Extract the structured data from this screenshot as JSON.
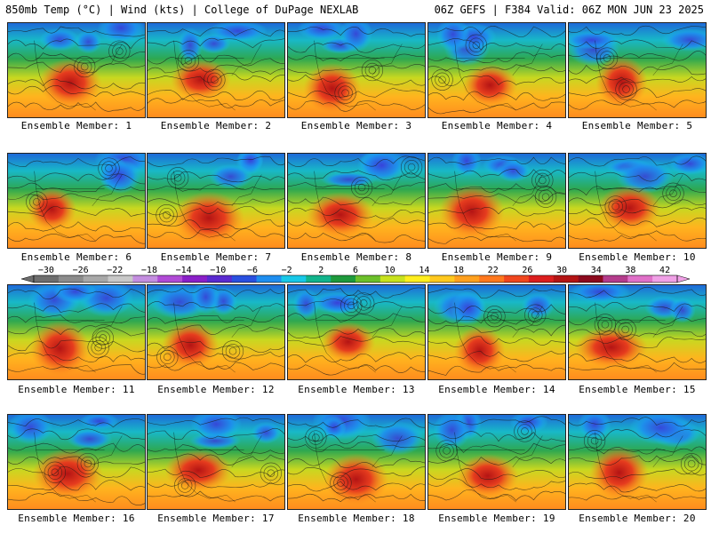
{
  "header": {
    "left": "850mb Temp (°C) | Wind (kts) | College of DuPage NEXLAB",
    "right": "06Z GEFS | F384 Valid: 06Z MON JUN 23 2025"
  },
  "panels": [
    {
      "label": "Ensemble Member: 1"
    },
    {
      "label": "Ensemble Member: 2"
    },
    {
      "label": "Ensemble Member: 3"
    },
    {
      "label": "Ensemble Member: 4"
    },
    {
      "label": "Ensemble Member: 5"
    },
    {
      "label": "Ensemble Member: 6"
    },
    {
      "label": "Ensemble Member: 7"
    },
    {
      "label": "Ensemble Member: 8"
    },
    {
      "label": "Ensemble Member: 9"
    },
    {
      "label": "Ensemble Member: 10"
    },
    {
      "label": "Ensemble Member: 11"
    },
    {
      "label": "Ensemble Member: 12"
    },
    {
      "label": "Ensemble Member: 13"
    },
    {
      "label": "Ensemble Member: 14"
    },
    {
      "label": "Ensemble Member: 15"
    },
    {
      "label": "Ensemble Member: 16"
    },
    {
      "label": "Ensemble Member: 17"
    },
    {
      "label": "Ensemble Member: 18"
    },
    {
      "label": "Ensemble Member: 19"
    },
    {
      "label": "Ensemble Member: 20"
    }
  ],
  "colorbar": {
    "ticks": [
      "-30",
      "-26",
      "-22",
      "-18",
      "-14",
      "-10",
      "-6",
      "-2",
      "2",
      "6",
      "10",
      "14",
      "18",
      "22",
      "26",
      "30",
      "34",
      "38",
      "42"
    ],
    "colors": [
      "#6e6e6e",
      "#8c8c8c",
      "#a8a8a8",
      "#c8c8c8",
      "#c48ee0",
      "#b04ad6",
      "#8a1fc8",
      "#5a2ad0",
      "#2a50e0",
      "#1e8ef0",
      "#18c8e8",
      "#12b48c",
      "#1e9a3c",
      "#6cc02a",
      "#c8e21e",
      "#ffee1e",
      "#ffc81e",
      "#ffa01e",
      "#ff781e",
      "#f0461e",
      "#dc1e1e",
      "#b41414",
      "#8c0a1e",
      "#b43c8c",
      "#e070c8",
      "#f0a0e6"
    ]
  }
}
